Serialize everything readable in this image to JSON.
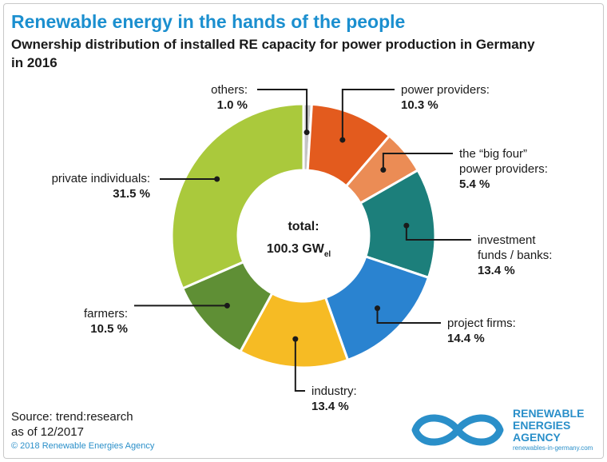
{
  "header": {
    "title": "Renewable energy in the hands of the people",
    "subtitle": "Ownership distribution of installed RE capacity for power production in Germany in 2016"
  },
  "chart_data": {
    "type": "pie",
    "style": "donut",
    "center_label": "total:",
    "total": {
      "value": "100.3 GW",
      "unit_subscript": "el"
    },
    "slices": [
      {
        "name": "others:",
        "label": "1.0 %",
        "value": 1.0,
        "color": "#c4c4c4"
      },
      {
        "name": "power providers:",
        "label": "10.3 %",
        "value": 10.3,
        "color": "#e35b1e"
      },
      {
        "name": "the “big four” power providers:",
        "label": "5.4 %",
        "value": 5.4,
        "color": "#eb8c55"
      },
      {
        "name": "investment funds / banks:",
        "label": "13.4 %",
        "value": 13.4,
        "color": "#1c7f7b"
      },
      {
        "name": "project firms:",
        "label": "14.4 %",
        "value": 14.4,
        "color": "#2a83d0"
      },
      {
        "name": "industry:",
        "label": "13.4 %",
        "value": 13.4,
        "color": "#f6bb24"
      },
      {
        "name": "farmers:",
        "label": "10.5 %",
        "value": 10.5,
        "color": "#5f8f35"
      },
      {
        "name": "private individuals:",
        "label": "31.5 %",
        "value": 31.5,
        "color": "#aac93c"
      }
    ]
  },
  "footer": {
    "source_line1": "Source: trend:research",
    "source_line2": "as of 12/2017",
    "copyright": "© 2018 Renewable Energies Agency"
  },
  "logo": {
    "line1": "RENEWABLE",
    "line2": "ENERGIES",
    "line3": "AGENCY",
    "url": "renewables-in-germany.com",
    "color": "#2a8fc9"
  }
}
